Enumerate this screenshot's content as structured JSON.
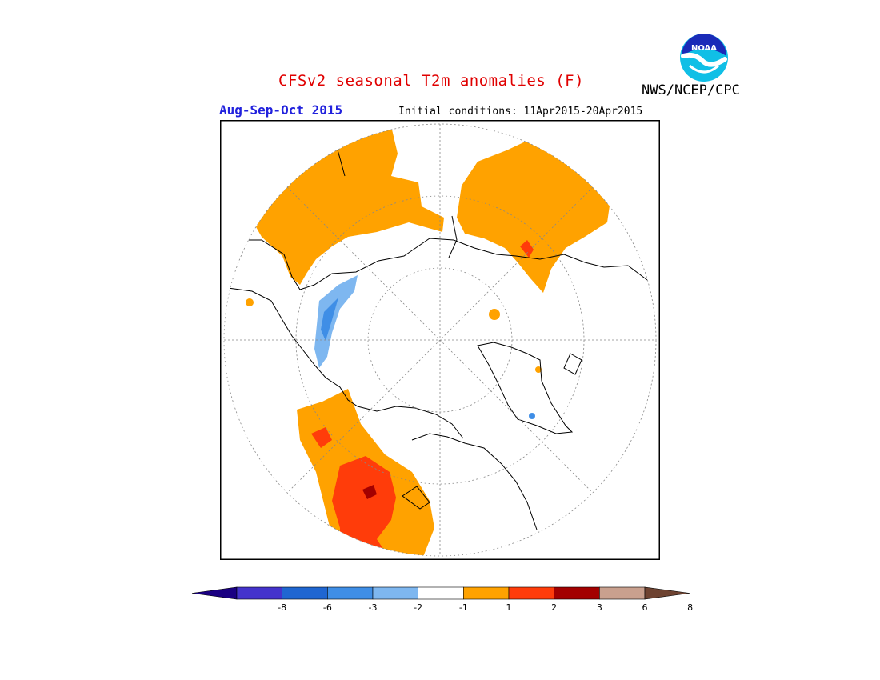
{
  "header": {
    "title": "CFSv2 seasonal T2m anomalies (F)",
    "season": "Aug-Sep-Oct 2015",
    "initial_conditions": "Initial conditions: 11Apr2015-20Apr2015",
    "agency": "NWS/NCEP/CPC",
    "logo_text": "NOAA"
  },
  "map": {
    "projection": "north-polar-stereographic",
    "variable": "T2m anomaly",
    "units": "F"
  },
  "legend": {
    "orientation": "horizontal",
    "ticks": [
      "-8",
      "-6",
      "-3",
      "-2",
      "-1",
      "1",
      "2",
      "3",
      "6",
      "8"
    ],
    "bins": [
      {
        "color": "#1a0082"
      },
      {
        "color": "#4433cc"
      },
      {
        "color": "#1f66d1"
      },
      {
        "color": "#3f8ee6"
      },
      {
        "color": "#7eb7f0"
      },
      {
        "color": "#ffffff"
      },
      {
        "color": "#ffa200"
      },
      {
        "color": "#ff3c0a"
      },
      {
        "color": "#a30000"
      },
      {
        "color": "#c9a08e"
      },
      {
        "color": "#6e4331"
      }
    ]
  },
  "colors": {
    "title": "#e00000",
    "season": "#2222dd",
    "frame": "#000000"
  }
}
